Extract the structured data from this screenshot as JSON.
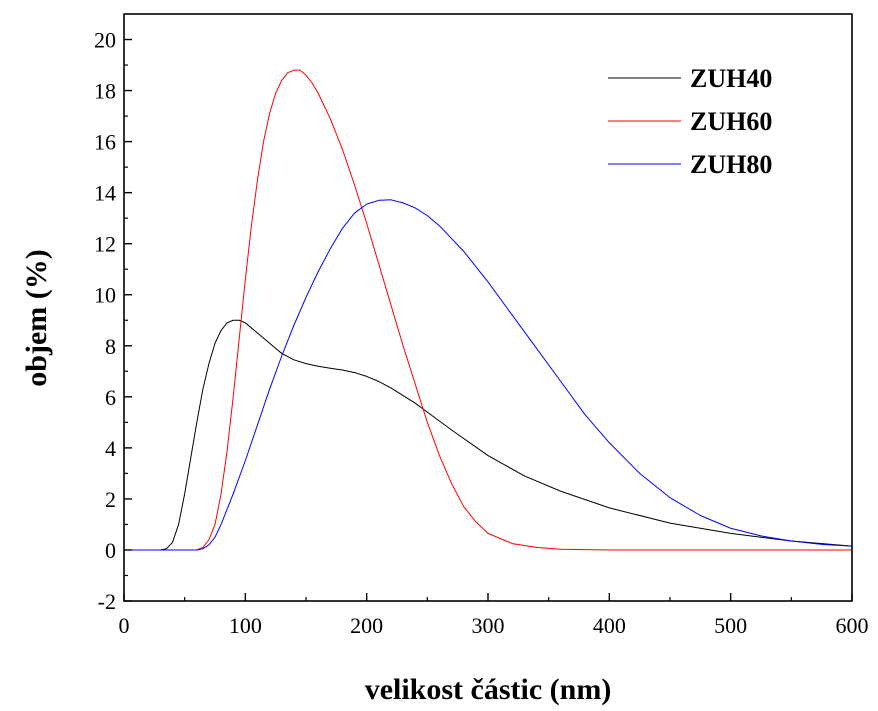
{
  "chart_data": {
    "type": "line",
    "xlabel": "velikost částic (nm)",
    "ylabel": "objem (%)",
    "xlim": [
      0,
      600
    ],
    "ylim": [
      -2,
      21
    ],
    "xticks": [
      0,
      100,
      200,
      300,
      400,
      500,
      600
    ],
    "yticks": [
      -2,
      0,
      2,
      4,
      6,
      8,
      10,
      12,
      14,
      16,
      18,
      20
    ],
    "grid": false,
    "legend_position": "top-right",
    "series": [
      {
        "name": "ZUH40",
        "color": "#000000",
        "x": [
          0,
          30,
          35,
          40,
          45,
          50,
          55,
          60,
          65,
          70,
          75,
          80,
          85,
          90,
          95,
          100,
          110,
          120,
          130,
          140,
          150,
          160,
          170,
          180,
          190,
          200,
          210,
          220,
          230,
          240,
          250,
          270,
          300,
          330,
          360,
          400,
          450,
          500,
          550,
          600
        ],
        "y": [
          0,
          0,
          0.05,
          0.3,
          1.0,
          2.2,
          3.6,
          5.0,
          6.3,
          7.3,
          8.1,
          8.6,
          8.9,
          9.0,
          9.0,
          8.9,
          8.5,
          8.1,
          7.7,
          7.45,
          7.3,
          7.2,
          7.12,
          7.05,
          6.95,
          6.8,
          6.6,
          6.35,
          6.05,
          5.75,
          5.4,
          4.7,
          3.7,
          2.9,
          2.3,
          1.65,
          1.05,
          0.65,
          0.35,
          0.15
        ]
      },
      {
        "name": "ZUH60",
        "color": "#ff0000",
        "x": [
          0,
          60,
          65,
          70,
          75,
          80,
          85,
          90,
          95,
          100,
          105,
          110,
          115,
          120,
          125,
          130,
          135,
          140,
          145,
          150,
          155,
          160,
          170,
          180,
          190,
          200,
          210,
          220,
          230,
          240,
          250,
          260,
          270,
          280,
          290,
          300,
          320,
          340,
          360,
          400,
          450,
          500,
          600
        ],
        "y": [
          0,
          0,
          0.1,
          0.4,
          1.0,
          2.2,
          3.9,
          6.0,
          8.3,
          10.6,
          12.7,
          14.5,
          16.0,
          17.1,
          17.9,
          18.4,
          18.7,
          18.8,
          18.8,
          18.6,
          18.3,
          17.9,
          16.9,
          15.7,
          14.3,
          12.8,
          11.2,
          9.6,
          8.0,
          6.5,
          5.0,
          3.7,
          2.6,
          1.7,
          1.1,
          0.65,
          0.25,
          0.1,
          0.03,
          0,
          0,
          0,
          0
        ]
      },
      {
        "name": "ZUH80",
        "color": "#0000ff",
        "x": [
          0,
          60,
          65,
          70,
          75,
          80,
          90,
          100,
          110,
          120,
          130,
          140,
          150,
          160,
          170,
          180,
          190,
          200,
          210,
          220,
          230,
          240,
          250,
          260,
          270,
          280,
          300,
          320,
          340,
          360,
          380,
          400,
          425,
          450,
          475,
          500,
          525,
          550,
          575,
          600
        ],
        "y": [
          0,
          0,
          0.05,
          0.2,
          0.5,
          1.0,
          2.2,
          3.5,
          4.9,
          6.3,
          7.6,
          8.8,
          9.9,
          10.9,
          11.8,
          12.6,
          13.2,
          13.55,
          13.7,
          13.72,
          13.6,
          13.4,
          13.1,
          12.7,
          12.2,
          11.7,
          10.5,
          9.2,
          7.9,
          6.6,
          5.3,
          4.2,
          3.0,
          2.05,
          1.35,
          0.85,
          0.55,
          0.35,
          0.22,
          0.15
        ]
      }
    ]
  }
}
